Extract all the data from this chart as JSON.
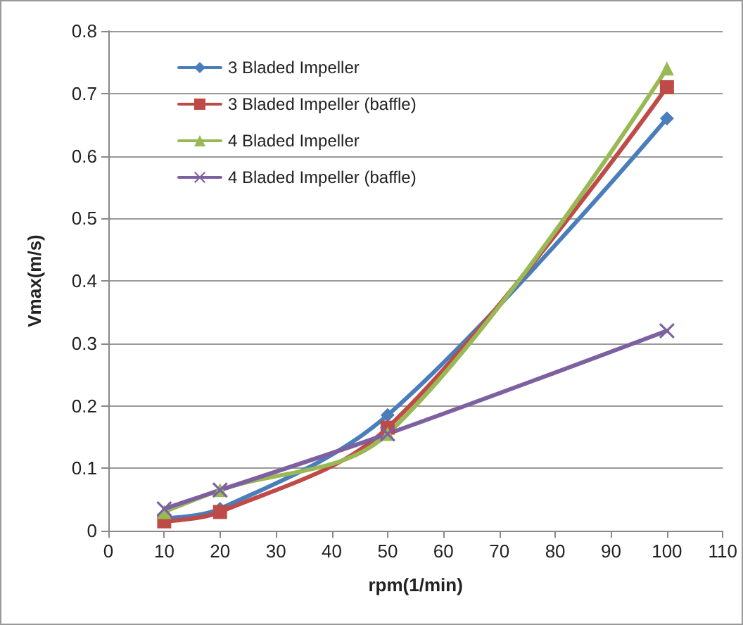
{
  "chart_data": {
    "type": "line",
    "xlabel": "rpm(1/min)",
    "ylabel": "Vmax(m/s)",
    "x": [
      10,
      20,
      50,
      100
    ],
    "series": [
      {
        "name": "3 Bladed Impeller",
        "color": "#4a7ebb",
        "marker": "diamond",
        "values": [
          0.02,
          0.035,
          0.185,
          0.66
        ]
      },
      {
        "name": "3 Bladed Impeller (baffle)",
        "color": "#be4b48",
        "marker": "square",
        "values": [
          0.015,
          0.03,
          0.165,
          0.71
        ]
      },
      {
        "name": "4 Bladed Impeller",
        "color": "#98b954",
        "marker": "triangle",
        "values": [
          0.03,
          0.065,
          0.155,
          0.74
        ]
      },
      {
        "name": "4 Bladed Impeller (baffle)",
        "color": "#7d60a0",
        "marker": "cross",
        "values": [
          0.035,
          0.065,
          0.155,
          0.32
        ]
      }
    ],
    "xlim": [
      0,
      110
    ],
    "xticks": [
      0,
      10,
      20,
      30,
      40,
      50,
      60,
      70,
      80,
      90,
      100,
      110
    ],
    "ylim": [
      0,
      0.8
    ],
    "yticks": [
      0,
      0.1,
      0.2,
      0.3,
      0.4,
      0.5,
      0.6,
      0.7,
      0.8
    ],
    "grid": "y",
    "legend": "top left",
    "line_style": "solid"
  }
}
